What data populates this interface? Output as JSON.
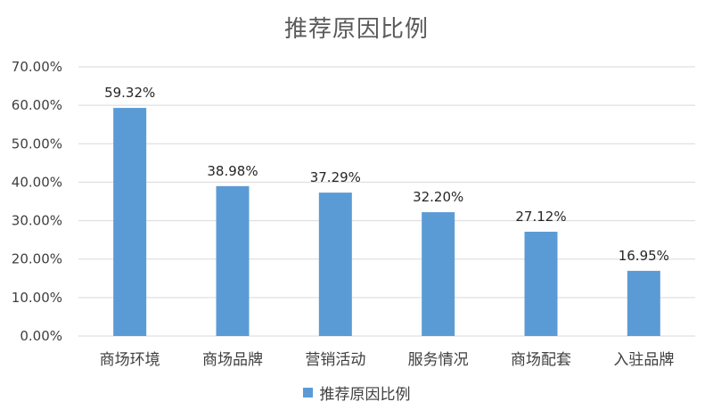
{
  "chart_data": {
    "type": "bar",
    "title": "推荐原因比例",
    "categories": [
      "商场环境",
      "商场品牌",
      "营销活动",
      "服务情况",
      "商场配套",
      "入驻品牌"
    ],
    "series": [
      {
        "name": "推荐原因比例",
        "values": [
          59.32,
          38.98,
          37.29,
          32.2,
          27.12,
          16.95
        ],
        "data_labels": [
          "59.32%",
          "38.98%",
          "37.29%",
          "32.20%",
          "27.12%",
          "16.95%"
        ],
        "color": "#5b9bd5"
      }
    ],
    "ylim": [
      0,
      70
    ],
    "yticks": [
      0,
      10,
      20,
      30,
      40,
      50,
      60,
      70
    ],
    "ytick_labels": [
      "0.00%",
      "10.00%",
      "20.00%",
      "30.00%",
      "40.00%",
      "50.00%",
      "60.00%",
      "70.00%"
    ],
    "grid": true,
    "legend_position": "bottom",
    "grid_color": "#d9d9d9"
  }
}
